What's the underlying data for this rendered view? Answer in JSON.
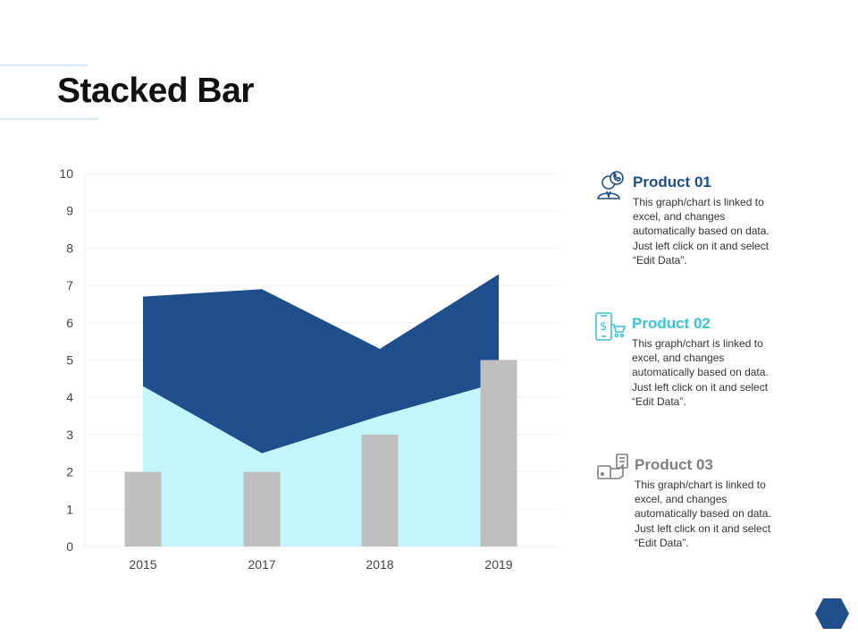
{
  "title": "Stacked Bar",
  "chart_data": {
    "type": "bar",
    "categories": [
      "2015",
      "2017",
      "2018",
      "2019"
    ],
    "ylim": [
      0,
      10
    ],
    "yticks": [
      0,
      1,
      2,
      3,
      4,
      5,
      6,
      7,
      8,
      9,
      10
    ],
    "grid": true,
    "series": [
      {
        "type": "bar",
        "color": "#bfbfbf",
        "values": [
          2,
          2,
          3,
          5
        ]
      },
      {
        "type": "area",
        "color": "#c4f5fb",
        "values": [
          4.3,
          2.5,
          3.5,
          4.4
        ]
      },
      {
        "type": "area",
        "color": "#1f4e8c",
        "values": [
          2.4,
          4.4,
          1.8,
          2.9
        ]
      }
    ],
    "legend_placement": "right"
  },
  "legend": [
    {
      "title": "Product 01",
      "color": "#1f4e8c",
      "icon": "support-agent-icon",
      "description": "This graph/chart is linked to excel, and changes automatically based on data. Just left click on it and select “Edit Data”."
    },
    {
      "title": "Product 02",
      "color": "#3cc3d8",
      "icon": "mobile-shopping-icon",
      "description": "This graph/chart is linked to excel, and changes automatically based on data. Just left click on it and select “Edit Data”."
    },
    {
      "title": "Product 03",
      "color": "#7f7f7f",
      "icon": "hand-money-icon",
      "description": "This graph/chart is linked to excel, and changes automatically based on data. Just left click on it and select “Edit Data”."
    }
  ],
  "accent_color": "#1f4e8c"
}
